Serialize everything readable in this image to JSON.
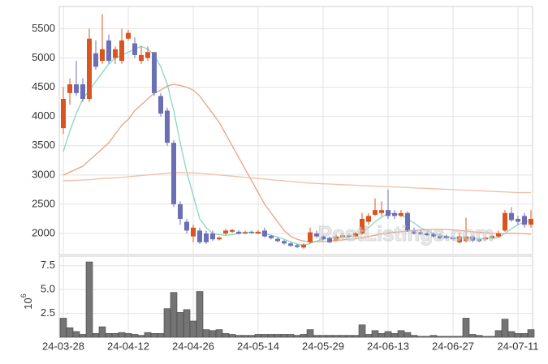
{
  "chart_data": [
    {
      "type": "candlestick",
      "watermark": "PostListings.com",
      "up_color": "#d9541e",
      "down_color": "#6b6fb5",
      "open": [
        3800,
        4400,
        4550,
        4550,
        4300,
        5080,
        4950,
        5300,
        5000,
        4950,
        5330,
        5250,
        4950,
        5000,
        5100,
        4350,
        4100,
        3550,
        2500,
        2200,
        1950,
        2050,
        2000,
        2000,
        1900,
        2000,
        2030,
        2030,
        2000,
        2030,
        2000,
        2050,
        1960,
        1910,
        1870,
        1830,
        1800,
        1760,
        1850,
        2000,
        1950,
        1920,
        1880,
        1940,
        1970,
        1950,
        2000,
        2200,
        2320,
        2350,
        2400,
        2350,
        2300,
        2350,
        2050,
        2020,
        2000,
        1990,
        1960,
        1950,
        1930,
        1850,
        1870,
        1950,
        1900,
        1900,
        1920,
        1950,
        2050,
        2350,
        2250,
        2300,
        2150
      ],
      "high": [
        4500,
        4650,
        4950,
        4650,
        5500,
        5300,
        5750,
        5400,
        5200,
        5500,
        5480,
        5350,
        5200,
        5200,
        5100,
        4400,
        4150,
        3600,
        2550,
        2250,
        2150,
        2100,
        2050,
        2050,
        1950,
        2080,
        2080,
        2060,
        2050,
        2050,
        2060,
        2100,
        1980,
        1930,
        1890,
        1850,
        1820,
        1830,
        2100,
        2050,
        1980,
        1950,
        1980,
        2000,
        1990,
        2030,
        2350,
        2350,
        2600,
        2550,
        2750,
        2400,
        2400,
        2380,
        2100,
        2050,
        2020,
        2010,
        2000,
        1980,
        1950,
        2000,
        2270,
        1970,
        1920,
        1950,
        1980,
        2050,
        2400,
        2450,
        2300,
        2350,
        2400
      ],
      "low": [
        3700,
        4200,
        4350,
        4250,
        4250,
        4800,
        4900,
        4900,
        4900,
        4900,
        5300,
        5000,
        4900,
        4950,
        4350,
        4000,
        3500,
        2450,
        2150,
        2000,
        1850,
        1820,
        1820,
        1870,
        1880,
        1980,
        2010,
        1980,
        1990,
        1990,
        1990,
        1930,
        1900,
        1850,
        1810,
        1770,
        1750,
        1740,
        1830,
        1920,
        1880,
        1830,
        1860,
        1920,
        1930,
        1930,
        1980,
        2150,
        2300,
        2300,
        2250,
        2250,
        2280,
        2030,
        1980,
        1970,
        1950,
        1930,
        1900,
        1900,
        1880,
        1830,
        1850,
        1850,
        1850,
        1880,
        1900,
        1930,
        2030,
        2200,
        2150,
        2100,
        2100
      ],
      "close": [
        4300,
        4550,
        4400,
        4300,
        5330,
        4850,
        5150,
        4950,
        5150,
        5300,
        5430,
        5050,
        5050,
        5100,
        4400,
        4050,
        3550,
        2500,
        2250,
        2050,
        2100,
        1850,
        1850,
        1900,
        1930,
        2050,
        2060,
        2000,
        2020,
        2010,
        2030,
        1950,
        1920,
        1870,
        1830,
        1790,
        1770,
        1810,
        2020,
        1950,
        1900,
        1850,
        1950,
        1970,
        1950,
        2000,
        2250,
        2300,
        2400,
        2400,
        2300,
        2300,
        2350,
        2050,
        2000,
        1990,
        1970,
        1950,
        1920,
        1920,
        1900,
        1950,
        1950,
        1880,
        1870,
        1930,
        1960,
        2000,
        2350,
        2230,
        2200,
        2150,
        2250
      ],
      "lines": [
        {
          "color": "#86d6c4",
          "values": [
            3400,
            3750,
            4050,
            4300,
            4450,
            4600,
            4750,
            4900,
            5000,
            5050,
            5100,
            5150,
            5200,
            5150,
            5050,
            4850,
            4550,
            4100,
            3550,
            3050,
            2650,
            2250,
            2100,
            2000,
            1980,
            1970,
            1980,
            2000,
            2020,
            2020,
            2010,
            2000,
            1970,
            1940,
            1900,
            1860,
            1820,
            1800,
            1830,
            1870,
            1910,
            1920,
            1930,
            1940,
            1940,
            1960,
            2020,
            2100,
            2200,
            2280,
            2340,
            2340,
            2320,
            2250,
            2180,
            2100,
            2050,
            2000,
            1970,
            1950,
            1930,
            1920,
            1930,
            1920,
            1910,
            1910,
            1920,
            1930,
            2000,
            2080,
            2150,
            2200,
            2220
          ]
        },
        {
          "color": "#e9a383",
          "values": [
            3000,
            3050,
            3100,
            3150,
            3250,
            3350,
            3450,
            3550,
            3700,
            3850,
            3950,
            4100,
            4200,
            4300,
            4400,
            4450,
            4520,
            4550,
            4530,
            4500,
            4450,
            4350,
            4200,
            4050,
            3900,
            3700,
            3500,
            3300,
            3100,
            2900,
            2700,
            2500,
            2350,
            2200,
            2050,
            1950,
            1900,
            1870,
            1860,
            1860,
            1860,
            1870,
            1880,
            1890,
            1900,
            1910,
            1930,
            1950,
            1970,
            1990,
            2010,
            2020,
            2030,
            2040,
            2050,
            2060,
            2065,
            2070,
            2070,
            2070,
            2060,
            2050,
            2040,
            2030,
            2020,
            2010,
            2005,
            2000,
            2000,
            2005,
            2000,
            1995,
            1990
          ]
        },
        {
          "color": "#efc0a6",
          "values": [
            2900,
            2905,
            2910,
            2915,
            2920,
            2930,
            2940,
            2945,
            2950,
            2960,
            2970,
            2980,
            2990,
            3000,
            3010,
            3020,
            3030,
            3040,
            3040,
            3040,
            3035,
            3030,
            3020,
            3010,
            3000,
            2990,
            2980,
            2970,
            2960,
            2950,
            2940,
            2930,
            2920,
            2910,
            2900,
            2890,
            2880,
            2870,
            2860,
            2855,
            2850,
            2845,
            2840,
            2835,
            2830,
            2825,
            2820,
            2815,
            2810,
            2805,
            2800,
            2795,
            2790,
            2785,
            2780,
            2775,
            2770,
            2765,
            2760,
            2755,
            2750,
            2745,
            2740,
            2735,
            2730,
            2725,
            2720,
            2715,
            2710,
            2705,
            2700,
            2700,
            2700
          ]
        }
      ],
      "ylim": [
        1640,
        5880
      ],
      "yticks": [
        2000,
        2500,
        3000,
        3500,
        4000,
        4500,
        5000,
        5500
      ],
      "grid": true
    },
    {
      "type": "bar",
      "color": "#747474",
      "unit_base": "10",
      "unit_exponent": "6",
      "categories": [
        "24-03-28",
        null,
        null,
        null,
        null,
        null,
        null,
        null,
        null,
        null,
        "24-04-12",
        null,
        null,
        null,
        null,
        null,
        null,
        null,
        null,
        null,
        "24-04-26",
        null,
        null,
        null,
        null,
        null,
        null,
        null,
        null,
        null,
        "24-05-14",
        null,
        null,
        null,
        null,
        null,
        null,
        null,
        null,
        null,
        "24-05-29",
        null,
        null,
        null,
        null,
        null,
        null,
        null,
        null,
        null,
        "24-06-13",
        null,
        null,
        null,
        null,
        null,
        null,
        null,
        null,
        null,
        "24-06-27",
        null,
        null,
        null,
        null,
        null,
        null,
        null,
        null,
        null,
        "24-07-11",
        null,
        null
      ],
      "values": [
        2.0,
        1.0,
        0.6,
        0.3,
        7.9,
        0.4,
        1.1,
        0.4,
        0.4,
        0.5,
        0.4,
        0.3,
        0.2,
        0.5,
        0.4,
        0.4,
        3.0,
        4.7,
        2.6,
        2.9,
        1.7,
        4.8,
        0.8,
        0.7,
        0.8,
        0.4,
        0.3,
        0.2,
        0.2,
        0.2,
        0.3,
        0.3,
        0.3,
        0.3,
        0.3,
        0.3,
        0.2,
        0.3,
        0.8,
        0.2,
        0.2,
        0.2,
        0.2,
        0.2,
        0.2,
        0.2,
        1.3,
        0.3,
        0.7,
        0.4,
        0.6,
        0.4,
        0.7,
        0.5,
        0.2,
        0.1,
        0.1,
        0.2,
        0.1,
        0.1,
        0.1,
        0.1,
        2.0,
        0.3,
        0.2,
        0.1,
        0.1,
        0.7,
        1.9,
        0.6,
        0.4,
        0.4,
        0.8
      ],
      "ylim": [
        0,
        8.5
      ],
      "yticks": [
        2.5,
        {
          "value": 5,
          "label": "5.0"
        },
        7.5
      ],
      "grid": true
    }
  ]
}
